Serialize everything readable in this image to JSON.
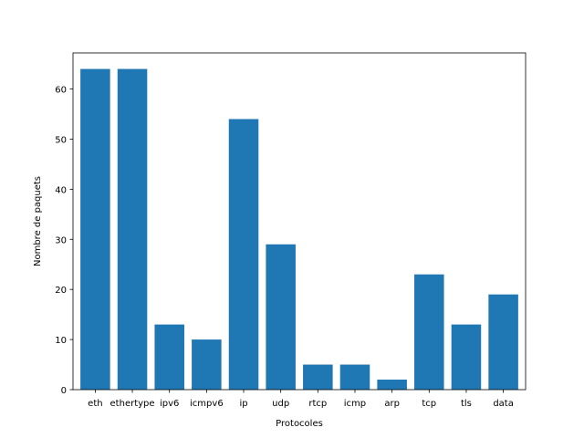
{
  "chart_data": {
    "type": "bar",
    "categories": [
      "eth",
      "ethertype",
      "ipv6",
      "icmpv6",
      "ip",
      "udp",
      "rtcp",
      "icmp",
      "arp",
      "tcp",
      "tls",
      "data"
    ],
    "values": [
      64,
      64,
      13,
      10,
      54,
      29,
      5,
      5,
      2,
      23,
      13,
      19
    ],
    "xlabel": "Protocoles",
    "ylabel": "Nombre de paquets",
    "ylim": [
      0,
      67.2
    ],
    "yticks": [
      0,
      10,
      20,
      30,
      40,
      50,
      60
    ],
    "bar_color": "#1f77b4",
    "grid": false,
    "legend": "none"
  }
}
